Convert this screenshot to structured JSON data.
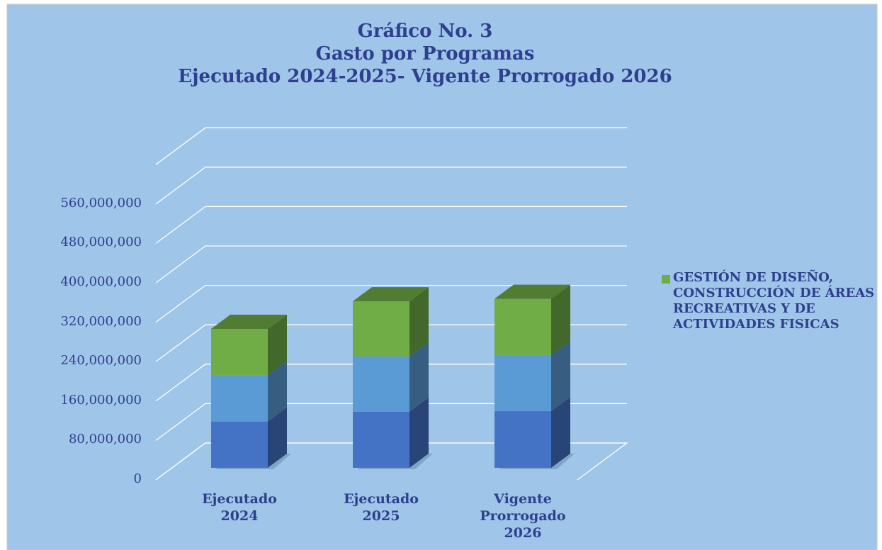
{
  "chart_data": {
    "type": "bar3d_stacked",
    "title": "Gráfico No. 3",
    "subtitle": [
      "Gasto por Programas",
      "Ejecutado 2024-2025- Vigente Prorrogado 2026"
    ],
    "categories": [
      "Ejecutado 2024",
      "Ejecutado 2025",
      "Vigente Prorrogado 2026"
    ],
    "series": [
      {
        "color": "#4472c4",
        "values": [
          94000000,
          114000000,
          115000000
        ]
      },
      {
        "color": "#5b9bd5",
        "values": [
          94000000,
          112000000,
          114000000
        ]
      },
      {
        "name": "GESTIÓN DE DISEÑO, CONSTRUCCIÓN DE ÁREAS RECREATIVAS Y DE ACTIVIDADES FISICAS",
        "color": "#70ad47",
        "values": [
          94000000,
          112000000,
          114000000
        ]
      }
    ],
    "ylim": [
      0,
      640000000
    ],
    "yticks": [
      0,
      {
        "value": 80000000,
        "label": "80,000,000"
      },
      {
        "value": 160000000,
        "label": "160,000,000"
      },
      {
        "value": 240000000,
        "label": "240,000,000"
      },
      {
        "value": 320000000,
        "label": "320,000,000"
      },
      {
        "value": 400000000,
        "label": "400,000,000"
      },
      {
        "value": 480000000,
        "label": "480,000,000"
      },
      {
        "value": 560000000,
        "label": "560,000,000"
      }
    ],
    "grid": true,
    "legend": "right"
  }
}
